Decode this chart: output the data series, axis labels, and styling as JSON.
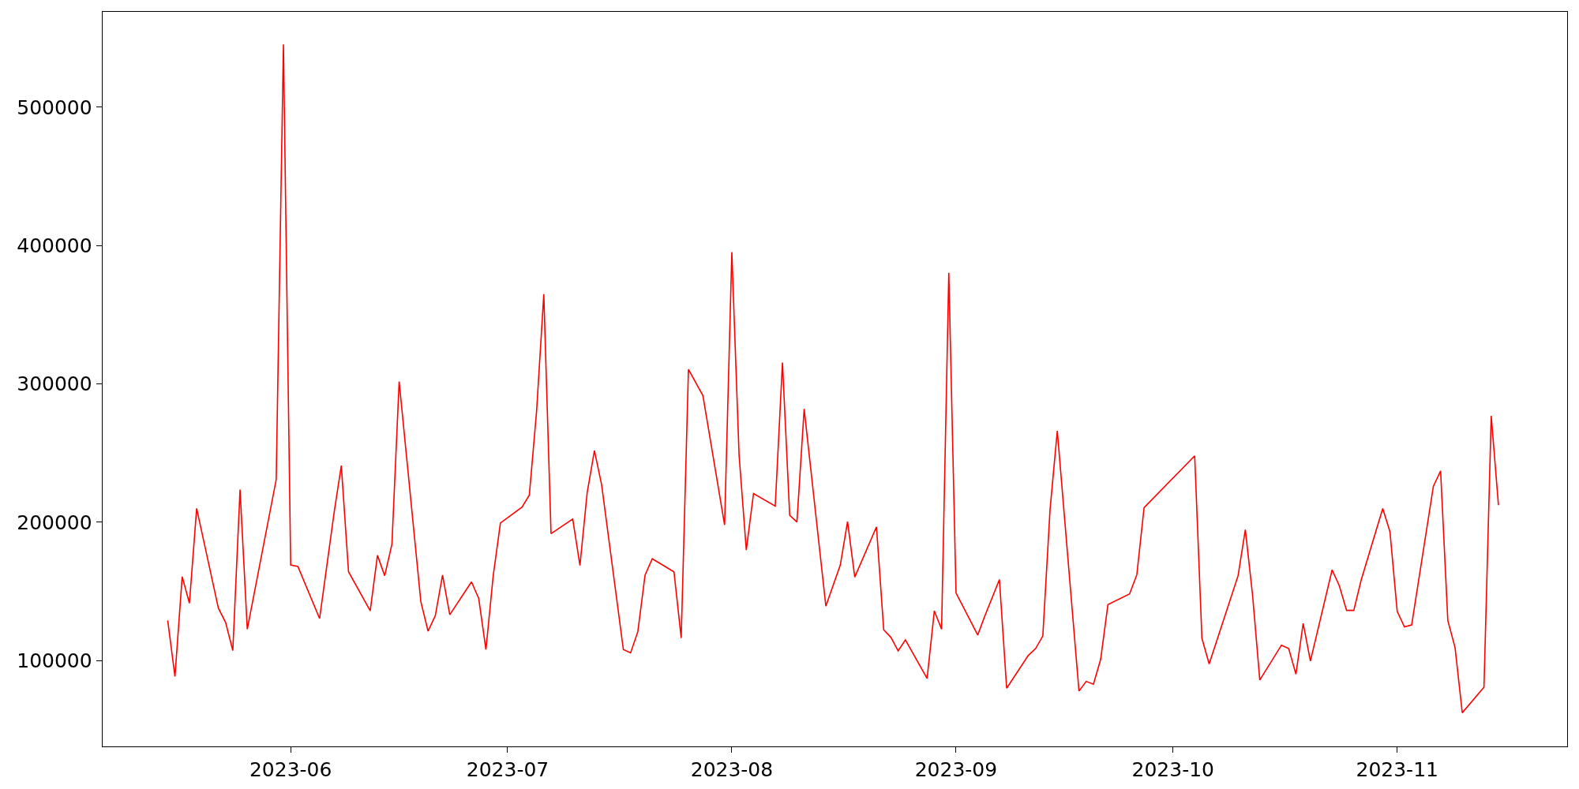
{
  "chart_data": {
    "type": "line",
    "x": [
      "2023-05-15",
      "2023-05-16",
      "2023-05-17",
      "2023-05-18",
      "2023-05-19",
      "2023-05-22",
      "2023-05-23",
      "2023-05-24",
      "2023-05-25",
      "2023-05-26",
      "2023-05-30",
      "2023-05-31",
      "2023-06-01",
      "2023-06-02",
      "2023-06-05",
      "2023-06-07",
      "2023-06-08",
      "2023-06-09",
      "2023-06-12",
      "2023-06-13",
      "2023-06-14",
      "2023-06-15",
      "2023-06-16",
      "2023-06-19",
      "2023-06-20",
      "2023-06-21",
      "2023-06-22",
      "2023-06-23",
      "2023-06-26",
      "2023-06-27",
      "2023-06-28",
      "2023-06-29",
      "2023-06-30",
      "2023-07-03",
      "2023-07-04",
      "2023-07-05",
      "2023-07-06",
      "2023-07-07",
      "2023-07-10",
      "2023-07-11",
      "2023-07-12",
      "2023-07-13",
      "2023-07-14",
      "2023-07-17",
      "2023-07-18",
      "2023-07-19",
      "2023-07-20",
      "2023-07-21",
      "2023-07-24",
      "2023-07-25",
      "2023-07-26",
      "2023-07-28",
      "2023-07-31",
      "2023-08-01",
      "2023-08-02",
      "2023-08-03",
      "2023-08-04",
      "2023-08-07",
      "2023-08-08",
      "2023-08-09",
      "2023-08-10",
      "2023-08-11",
      "2023-08-14",
      "2023-08-16",
      "2023-08-17",
      "2023-08-18",
      "2023-08-21",
      "2023-08-22",
      "2023-08-23",
      "2023-08-24",
      "2023-08-25",
      "2023-08-28",
      "2023-08-29",
      "2023-08-30",
      "2023-08-31",
      "2023-09-01",
      "2023-09-04",
      "2023-09-05",
      "2023-09-07",
      "2023-09-08",
      "2023-09-11",
      "2023-09-12",
      "2023-09-13",
      "2023-09-14",
      "2023-09-15",
      "2023-09-18",
      "2023-09-19",
      "2023-09-20",
      "2023-09-21",
      "2023-09-22",
      "2023-09-25",
      "2023-09-26",
      "2023-09-27",
      "2023-10-04",
      "2023-10-05",
      "2023-10-06",
      "2023-10-10",
      "2023-10-11",
      "2023-10-12",
      "2023-10-13",
      "2023-10-16",
      "2023-10-17",
      "2023-10-18",
      "2023-10-19",
      "2023-10-20",
      "2023-10-23",
      "2023-10-24",
      "2023-10-25",
      "2023-10-26",
      "2023-10-27",
      "2023-10-30",
      "2023-10-31",
      "2023-11-01",
      "2023-11-02",
      "2023-11-03",
      "2023-11-06",
      "2023-11-07",
      "2023-11-08",
      "2023-11-09",
      "2023-11-10",
      "2023-11-13",
      "2023-11-14",
      "2023-11-15"
    ],
    "series": [
      {
        "color": "#ff0000",
        "values": [
          129000,
          88500,
          160700,
          141500,
          210000,
          138000,
          127600,
          107300,
          223600,
          122700,
          230900,
          545400,
          169100,
          168100,
          130400,
          206800,
          241000,
          164200,
          136000,
          176100,
          161400,
          184100,
          301700,
          142600,
          121300,
          132500,
          161800,
          133200,
          156900,
          145000,
          108000,
          161100,
          199500,
          211000,
          219700,
          280100,
          364900,
          191800,
          202300,
          168800,
          221500,
          251800,
          227000,
          108000,
          105600,
          120900,
          161800,
          173600,
          164200,
          116400,
          310500,
          291600,
          198100,
          395300,
          248700,
          179900,
          220800,
          211700,
          315400,
          205100,
          200200,
          281900,
          139400,
          169100,
          200500,
          160400,
          196700,
          122300,
          116800,
          107000,
          115000,
          87100,
          136000,
          122700,
          380300,
          148900,
          118500,
          132500,
          158600,
          80100,
          103800,
          108700,
          117800,
          209200,
          266100,
          78000,
          85000,
          82900,
          101000,
          140500,
          148200,
          162100,
          210600,
          248000,
          116100,
          97600,
          161400,
          194600,
          147500,
          86000,
          111200,
          108700,
          90200,
          126900,
          99700,
          165600,
          154100,
          136300,
          136300,
          157900,
          210000,
          193200,
          135600,
          124400,
          125800,
          226000,
          237200,
          129000,
          109400,
          62300,
          80800,
          277000,
          212400
        ]
      }
    ],
    "xlim": [
      "2023-05-06",
      "2023-11-24T12:00"
    ],
    "xticks": [
      {
        "value": "2023-06-01",
        "label": "2023-06"
      },
      {
        "value": "2023-07-01",
        "label": "2023-07"
      },
      {
        "value": "2023-08-01",
        "label": "2023-08"
      },
      {
        "value": "2023-09-01",
        "label": "2023-09"
      },
      {
        "value": "2023-10-01",
        "label": "2023-10"
      },
      {
        "value": "2023-11-01",
        "label": "2023-11"
      }
    ],
    "ylim": [
      38000,
      569000
    ],
    "yticks": [
      100000,
      200000,
      300000,
      400000,
      500000
    ],
    "grid": false,
    "marker": "none",
    "line_style": "solid"
  }
}
